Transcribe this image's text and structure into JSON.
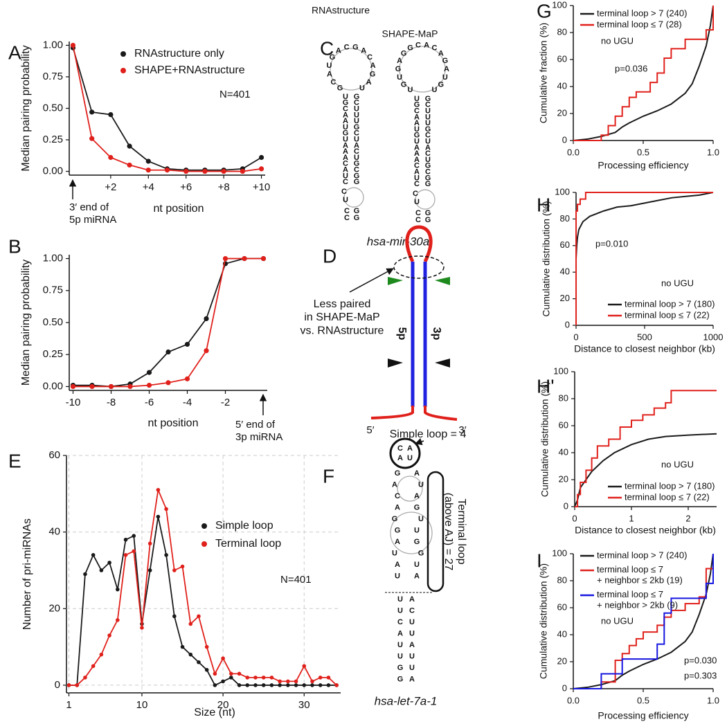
{
  "chart_data": [
    {
      "panel": "A",
      "type": "line",
      "markers": true,
      "xlabel": "nt position",
      "ylabel": "Median pairing probability",
      "x": [
        0,
        1,
        2,
        3,
        4,
        5,
        6,
        7,
        8,
        9,
        10
      ],
      "xlim": [
        -0.2,
        10.2
      ],
      "ylim": [
        -0.03,
        1.03
      ],
      "xticks": [
        {
          "value": 2,
          "label": "+2"
        },
        {
          "value": 4,
          "label": "+4"
        },
        {
          "value": 6,
          "label": "+6"
        },
        {
          "value": 8,
          "label": "+8"
        },
        {
          "value": 10,
          "label": "+10"
        }
      ],
      "yticks": [
        {
          "value": 0,
          "label": "0.00"
        },
        0.25,
        {
          "value": 0.5,
          "label": "0.50"
        },
        0.75,
        {
          "value": 1,
          "label": "1.00"
        }
      ],
      "series": [
        {
          "name": "RNAstructure only",
          "color": "#1a1a1a",
          "values": [
            0.98,
            0.47,
            0.45,
            0.2,
            0.08,
            0.02,
            0.01,
            0.01,
            0.01,
            0.02,
            0.11
          ]
        },
        {
          "name": "SHAPE+RNAstructure",
          "color": "#e0201b",
          "values": [
            1.0,
            0.26,
            0.11,
            0.05,
            0.01,
            0.01,
            0.0,
            0.0,
            0.0,
            0.0,
            0.02
          ]
        }
      ],
      "annotations": [
        {
          "text": "N=401"
        },
        {
          "text": "3′ end of\n5p miRNA"
        }
      ]
    },
    {
      "panel": "B",
      "type": "line",
      "markers": true,
      "xlabel": "nt position",
      "ylabel": "Median pairing probability",
      "x": [
        -10,
        -9,
        -8,
        -7,
        -6,
        -5,
        -4,
        -3,
        -2,
        -1,
        0
      ],
      "xlim": [
        -10.2,
        0.2
      ],
      "ylim": [
        -0.03,
        1.03
      ],
      "xticks": [
        -10,
        -8,
        -6,
        -4,
        -2
      ],
      "yticks": [
        {
          "value": 0,
          "label": "0.00"
        },
        0.25,
        {
          "value": 0.5,
          "label": "0.50"
        },
        0.75,
        {
          "value": 1,
          "label": "1.00"
        }
      ],
      "series": [
        {
          "color": "#1a1a1a",
          "values": [
            0.01,
            0.01,
            0.0,
            0.02,
            0.11,
            0.27,
            0.33,
            0.53,
            0.96,
            1.0,
            1.0
          ]
        },
        {
          "color": "#e0201b",
          "values": [
            0.0,
            0.0,
            0.0,
            0.0,
            0.01,
            0.03,
            0.06,
            0.28,
            1.0,
            1.0,
            1.0
          ]
        }
      ],
      "annotations": [
        {
          "text": "5′ end of\n3p miRNA"
        }
      ]
    },
    {
      "panel": "E",
      "type": "line",
      "markers": true,
      "grid": true,
      "xlabel": "Size (nt)",
      "ylabel": "Number of pri-miRNAs",
      "x": [
        1,
        2,
        3,
        4,
        5,
        6,
        7,
        8,
        9,
        10,
        11,
        12,
        13,
        14,
        15,
        16,
        17,
        18,
        19,
        20,
        21,
        22,
        23,
        24,
        25,
        26,
        27,
        28,
        29,
        30,
        31,
        32,
        33,
        34
      ],
      "xlim": [
        0.7,
        34.5
      ],
      "ylim": [
        -2,
        60
      ],
      "xticks": [
        1,
        10,
        20,
        30
      ],
      "yticks": [
        0,
        20,
        40,
        60
      ],
      "series": [
        {
          "name": "Simple loop",
          "color": "#1a1a1a",
          "values": [
            0,
            0,
            29,
            34,
            30,
            32,
            25,
            38,
            39,
            16,
            30,
            44,
            34,
            18,
            10,
            8,
            6,
            4,
            0,
            1,
            2,
            0,
            0,
            0,
            0,
            0,
            0,
            0,
            0,
            0,
            0,
            0,
            0,
            0
          ]
        },
        {
          "name": "Terminal loop",
          "color": "#e0201b",
          "values": [
            0,
            0,
            2,
            5,
            8,
            13,
            17,
            34,
            35,
            15,
            37,
            51,
            46,
            30,
            31,
            16,
            18,
            10,
            3,
            7,
            3,
            3,
            2,
            2,
            2,
            2,
            1,
            1,
            1,
            5,
            1,
            2,
            2,
            0
          ]
        }
      ],
      "annotations": [
        {
          "text": "N=401"
        }
      ]
    },
    {
      "panel": "G",
      "type": "line",
      "xlabel": "Processing efficiency",
      "ylabel": "Cumulative fraction (%)",
      "xlim": [
        0,
        1
      ],
      "ylim": [
        0,
        100
      ],
      "xticks": [
        {
          "value": 0,
          "label": "0.0"
        },
        0.5,
        {
          "value": 1,
          "label": "1.0"
        }
      ],
      "yticks": [
        0,
        20,
        40,
        60,
        80,
        100
      ],
      "series": [
        {
          "name": "terminal loop > 7 (240)",
          "color": "#1a1a1a",
          "x": [
            0,
            0.1,
            0.2,
            0.3,
            0.35,
            0.4,
            0.5,
            0.6,
            0.7,
            0.8,
            0.85,
            0.9,
            0.95,
            0.98,
            1.0
          ],
          "values": [
            0,
            1,
            3,
            6,
            10,
            13,
            18,
            22,
            27,
            35,
            42,
            55,
            70,
            85,
            100
          ]
        },
        {
          "name": "terminal loop ≤ 7 (28)",
          "color": "#e0201b",
          "x": [
            0,
            0.2,
            0.2,
            0.25,
            0.25,
            0.3,
            0.3,
            0.35,
            0.35,
            0.4,
            0.4,
            0.45,
            0.45,
            0.55,
            0.55,
            0.6,
            0.6,
            0.65,
            0.65,
            0.7,
            0.7,
            0.8,
            0.8,
            0.95,
            0.95,
            1.0,
            1.0
          ],
          "values": [
            0,
            0,
            4,
            4,
            11,
            11,
            18,
            18,
            25,
            25,
            32,
            32,
            36,
            36,
            43,
            43,
            50,
            50,
            61,
            61,
            68,
            68,
            75,
            75,
            82,
            82,
            100
          ]
        }
      ],
      "annotations": [
        {
          "text": "no UGU",
          "color": "#1515e0"
        },
        {
          "text": "p=0.036"
        }
      ]
    },
    {
      "panel": "H",
      "type": "line",
      "xlabel": "Distance to closest neighbor (kb)",
      "ylabel": "Cumulative distribution (%)",
      "xlim": [
        0,
        1000
      ],
      "ylim": [
        0,
        100
      ],
      "xticks": [
        0,
        500,
        1000
      ],
      "yticks": [
        0,
        20,
        40,
        60,
        80,
        100
      ],
      "series": [
        {
          "name": "terminal loop > 7 (180)",
          "color": "#1a1a1a",
          "x": [
            0,
            0,
            5,
            10,
            20,
            50,
            100,
            200,
            300,
            400,
            500,
            600,
            700,
            800,
            900,
            1000
          ],
          "values": [
            0,
            50,
            60,
            66,
            72,
            78,
            82,
            86,
            89,
            90,
            92,
            94,
            96,
            97,
            98,
            100
          ]
        },
        {
          "name": "terminal loop ≤ 7 (22)",
          "color": "#e0201b",
          "x": [
            0,
            0,
            10,
            10,
            30,
            30,
            70,
            70,
            1000
          ],
          "values": [
            0,
            86,
            86,
            91,
            91,
            95,
            95,
            100,
            100
          ]
        }
      ],
      "annotations": [
        {
          "text": "p=0.010"
        },
        {
          "text": "no UGU",
          "color": "#1515e0"
        }
      ]
    },
    {
      "panel": "H'",
      "type": "line",
      "xlabel": "Distance to closest neighbor (kb)",
      "ylabel": "Cumulative distribution (%)",
      "xlim": [
        0,
        2.5
      ],
      "ylim": [
        0,
        100
      ],
      "xticks": [
        0,
        1,
        2
      ],
      "yticks": [
        0,
        20,
        40,
        60,
        80,
        100
      ],
      "series": [
        {
          "name": "terminal loop > 7 (180)",
          "color": "#1a1a1a",
          "x": [
            0,
            0.05,
            0.1,
            0.15,
            0.2,
            0.3,
            0.4,
            0.5,
            0.7,
            1.0,
            1.3,
            1.6,
            2.0,
            2.5
          ],
          "values": [
            0,
            5,
            14,
            17,
            20,
            26,
            30,
            34,
            40,
            46,
            50,
            52,
            53,
            54
          ]
        },
        {
          "name": "terminal loop ≤ 7 (22)",
          "color": "#e0201b",
          "x": [
            0,
            0.05,
            0.05,
            0.1,
            0.1,
            0.2,
            0.2,
            0.3,
            0.3,
            0.4,
            0.4,
            0.6,
            0.6,
            0.8,
            0.8,
            1.0,
            1.0,
            1.2,
            1.2,
            1.4,
            1.4,
            1.6,
            1.6,
            1.7,
            1.7,
            2.5
          ],
          "values": [
            0,
            0,
            9,
            9,
            18,
            18,
            27,
            27,
            36,
            36,
            45,
            45,
            50,
            50,
            59,
            59,
            64,
            64,
            68,
            68,
            73,
            73,
            77,
            77,
            86,
            86
          ]
        }
      ],
      "annotations": [
        {
          "text": "no UGU",
          "color": "#1515e0"
        }
      ]
    },
    {
      "panel": "I",
      "type": "line",
      "xlabel": "Processing efficiency",
      "ylabel": "Cumulative distribution (%)",
      "xlim": [
        0,
        1
      ],
      "ylim": [
        0,
        100
      ],
      "xticks": [
        {
          "value": 0,
          "label": "0.0"
        },
        0.5,
        {
          "value": 1,
          "label": "1.0"
        }
      ],
      "yticks": [
        0,
        20,
        40,
        60,
        80,
        100
      ],
      "series": [
        {
          "name": "terminal loop > 7 (240)",
          "color": "#1a1a1a",
          "x": [
            0,
            0.1,
            0.2,
            0.3,
            0.35,
            0.4,
            0.5,
            0.6,
            0.7,
            0.8,
            0.85,
            0.9,
            0.95,
            0.98,
            1.0
          ],
          "values": [
            0,
            1,
            3,
            6,
            10,
            13,
            18,
            22,
            27,
            35,
            42,
            55,
            70,
            85,
            100
          ]
        },
        {
          "name": "terminal loop ≤ 7\n+ neighbor ≤ 2kb (19)",
          "color": "#e0201b",
          "x": [
            0,
            0.2,
            0.2,
            0.3,
            0.3,
            0.35,
            0.35,
            0.4,
            0.4,
            0.45,
            0.45,
            0.5,
            0.5,
            0.6,
            0.6,
            0.65,
            0.65,
            0.7,
            0.7,
            0.8,
            0.8,
            0.9,
            0.9,
            0.95,
            0.95,
            1.0,
            1.0
          ],
          "values": [
            0,
            0,
            5,
            5,
            21,
            21,
            26,
            26,
            32,
            32,
            37,
            37,
            42,
            42,
            47,
            47,
            53,
            53,
            58,
            58,
            63,
            63,
            68,
            68,
            89,
            89,
            100
          ]
        },
        {
          "name": "terminal loop ≤ 7\n+ neighbor > 2kb (9)",
          "color": "#1515e0",
          "x": [
            0,
            0.2,
            0.2,
            0.35,
            0.35,
            0.6,
            0.6,
            0.65,
            0.65,
            0.7,
            0.7,
            0.95,
            0.95,
            1.0,
            1.0
          ],
          "values": [
            0,
            0,
            11,
            11,
            22,
            22,
            33,
            33,
            56,
            56,
            67,
            67,
            78,
            78,
            100
          ]
        }
      ],
      "annotations": [
        {
          "text": "no UGU",
          "color": "#1515e0"
        },
        {
          "text": "p=0.030",
          "color": "#e0201b"
        },
        {
          "text": "p=0.303",
          "color": "#1515e0"
        }
      ]
    }
  ],
  "diagrams": {
    "C": {
      "panel": "C",
      "titles": [
        "RNAstructure",
        "SHAPE-MaP"
      ],
      "caption": "hsa-mir-30a",
      "structures": [
        {
          "loop": [
            "G",
            "C",
            "A",
            "U",
            "G",
            "A",
            "C",
            "G",
            "A",
            "C",
            "A",
            "G",
            "A",
            "U"
          ],
          "stem_5p": [
            "U",
            "G",
            "C",
            "A",
            "A",
            "U",
            "G",
            "U",
            "A",
            "A",
            "A",
            "C",
            "A",
            "U",
            "C"
          ],
          "stem_3p": [
            "G",
            "C",
            "U",
            "U",
            "U",
            "G",
            "C",
            "U",
            "A",
            "C",
            "U",
            "G",
            "C",
            "G",
            "G"
          ],
          "bulge": [
            "C",
            "U"
          ],
          "base_5p": [
            "C",
            "C"
          ],
          "base_3p": [
            "G",
            "G"
          ]
        },
        {
          "loop": [
            "U",
            "G",
            "U",
            "G",
            "A",
            "G",
            "G",
            "C",
            "A",
            "C",
            "A",
            "G",
            "A",
            "U",
            "G",
            "U"
          ],
          "loop_colors": [
            "#e0201b",
            "#e8a33d",
            "#e0201b",
            "#e8a33d",
            "#e0201b",
            "#e0201b",
            "#e8a33d",
            "#e8a33d",
            "#222222",
            "#222222",
            "#222222",
            "#e0201b",
            "#e0201b",
            "#e8a33d",
            "#e8a33d",
            "#e0201b"
          ],
          "stem_5p": [
            "U",
            "G",
            "C",
            "A",
            "A",
            "U",
            "G",
            "U",
            "A",
            "A",
            "A",
            "C",
            "A",
            "U",
            "C"
          ],
          "stem_3p": [
            "G",
            "C",
            "U",
            "U",
            "U",
            "G",
            "C",
            "U",
            "A",
            "C",
            "U",
            "G",
            "C",
            "G",
            "G"
          ],
          "bulge": [
            "C",
            "U"
          ],
          "bulge_colors": [
            "#e8a33d",
            "#e0201b"
          ],
          "base_5p": [
            "C",
            "C"
          ],
          "base_3p": [
            "G",
            "G"
          ]
        }
      ]
    },
    "D": {
      "panel": "D",
      "note": "Less paired\nin SHAPE-MaP\nvs. RNAstructure",
      "arm_5p": "5p",
      "arm_3p": "3p",
      "end_5": "5′",
      "end_3": "3′"
    },
    "F": {
      "panel": "F",
      "loop_note": "Simple loop = 4",
      "terminal_note": "Terminal loop\n(above AJ) = 27",
      "caption": "hsa-let-7a-1",
      "loop": [
        "C",
        "A",
        "A",
        "U"
      ],
      "loop_colors": [
        "#222222",
        "#e0201b",
        "#e8a33d",
        "#e0201b"
      ],
      "chain_5p": [
        "G",
        "A",
        "C",
        "A",
        "G",
        "G",
        "A",
        "U",
        "A",
        "U"
      ],
      "chain_3p": [
        "A",
        "U",
        "A",
        "G",
        "U",
        "U",
        "G",
        "G",
        "U",
        "A"
      ],
      "stem_5p": [
        "U",
        "U",
        "C",
        "A",
        "U",
        "U",
        "G",
        "G"
      ],
      "stem_3p": [
        "A",
        "C",
        "U",
        "U",
        "A",
        "U",
        "U",
        "A"
      ]
    }
  }
}
